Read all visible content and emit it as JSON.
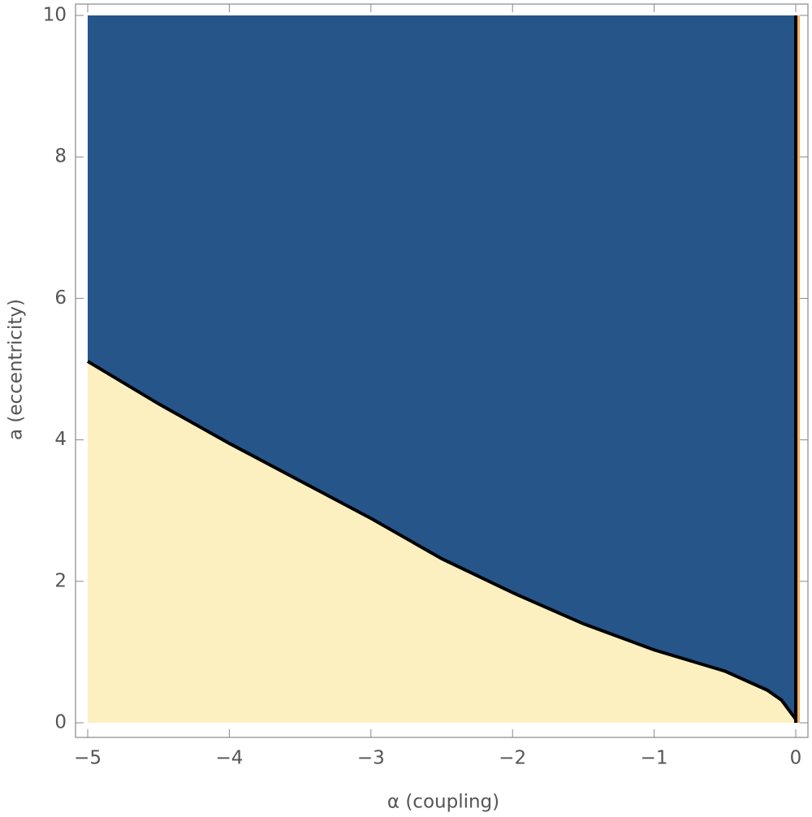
{
  "chart_data": {
    "type": "region",
    "xlabel": "α  (coupling)",
    "ylabel": "a  (eccentricity)",
    "boundary": {
      "x": [
        -5,
        -4.5,
        -4,
        -3.5,
        -3,
        -2.5,
        -2,
        -1.5,
        -1,
        -0.5,
        -0.2,
        -0.1,
        0
      ],
      "y": [
        5.11,
        4.51,
        3.95,
        3.42,
        2.89,
        2.32,
        1.84,
        1.4,
        1.03,
        0.73,
        0.46,
        0.32,
        0.05
      ]
    },
    "vline": 0,
    "upper_color": "#26558a",
    "lower_color": "#fdf0c0",
    "boundary_color": "#000000",
    "xlim": [
      -5,
      0
    ],
    "ylim": [
      0,
      10
    ],
    "xticks": [
      {
        "value": -5,
        "label": "−5"
      },
      {
        "value": -4,
        "label": "−4"
      },
      {
        "value": -3,
        "label": "−3"
      },
      {
        "value": -2,
        "label": "−2"
      },
      {
        "value": -1,
        "label": "−1"
      },
      0
    ],
    "yticks": [
      0,
      2,
      4,
      6,
      8,
      10
    ]
  }
}
